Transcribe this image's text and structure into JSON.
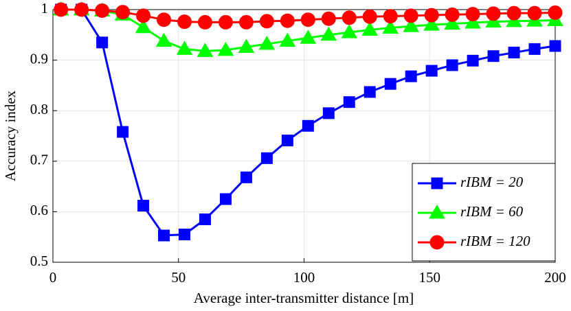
{
  "chart_data": {
    "type": "line",
    "xlabel": "Average inter-transmitter distance [m]",
    "ylabel": "Accuracy index",
    "x": [
      3.2,
      11.4,
      19.6,
      27.8,
      36.0,
      44.2,
      52.4,
      60.6,
      68.8,
      77.0,
      85.2,
      93.4,
      101.6,
      109.8,
      118.0,
      126.2,
      134.4,
      142.6,
      150.8,
      159.0,
      167.2,
      175.4,
      183.6,
      191.8,
      200.0
    ],
    "series": [
      {
        "name": "rIBM = 20",
        "color": "#0000ff",
        "marker": "square",
        "values": [
          1.0,
          1.0,
          0.935,
          0.758,
          0.612,
          0.553,
          0.555,
          0.585,
          0.625,
          0.668,
          0.706,
          0.741,
          0.77,
          0.795,
          0.817,
          0.837,
          0.853,
          0.868,
          0.879,
          0.89,
          0.899,
          0.908,
          0.915,
          0.922,
          0.928
        ]
      },
      {
        "name": "rIBM = 60",
        "color": "#00ff00",
        "marker": "triangle",
        "values": [
          1.0,
          1.0,
          0.998,
          0.99,
          0.965,
          0.938,
          0.922,
          0.918,
          0.92,
          0.926,
          0.932,
          0.938,
          0.944,
          0.95,
          0.955,
          0.96,
          0.964,
          0.967,
          0.97,
          0.972,
          0.974,
          0.976,
          0.977,
          0.978,
          0.979
        ]
      },
      {
        "name": "rIBM = 120",
        "color": "#ff0000",
        "marker": "circle",
        "values": [
          1.0,
          1.0,
          0.998,
          0.995,
          0.988,
          0.98,
          0.976,
          0.975,
          0.975,
          0.975,
          0.977,
          0.978,
          0.98,
          0.982,
          0.984,
          0.986,
          0.987,
          0.988,
          0.989,
          0.99,
          0.991,
          0.992,
          0.993,
          0.993,
          0.994
        ]
      }
    ],
    "xlim": [
      0,
      200
    ],
    "xticks": [
      0,
      50,
      100,
      150,
      200
    ],
    "ylim": [
      0.5,
      1
    ],
    "yticks": [
      0.5,
      0.6,
      0.7,
      0.8,
      0.9,
      1
    ],
    "grid": true,
    "legend": "lower right"
  }
}
